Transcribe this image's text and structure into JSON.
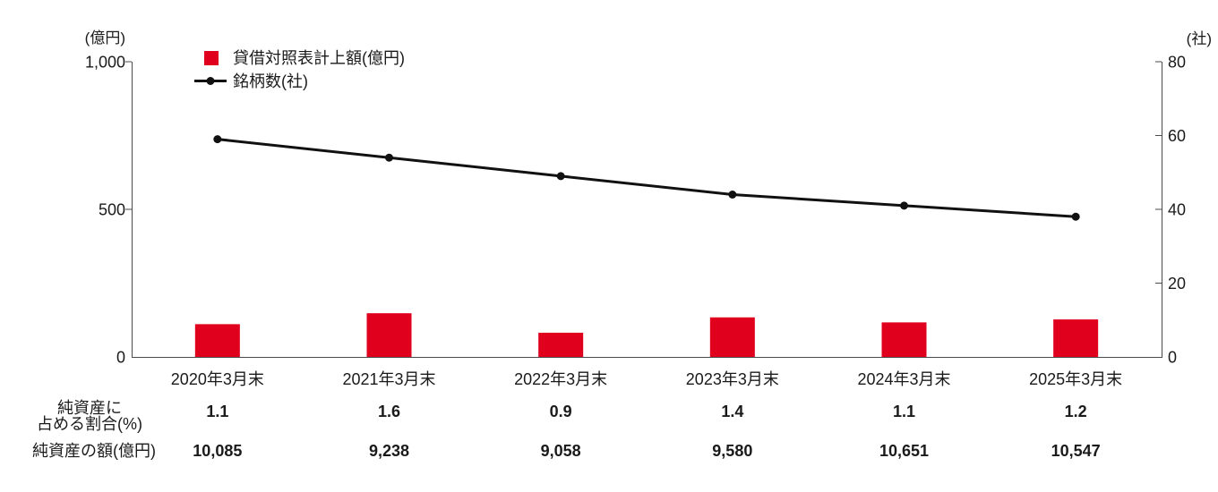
{
  "chart_data": {
    "type": "bar+line-combo",
    "title": "",
    "categories": [
      "2020年3月末",
      "2021年3月末",
      "2022年3月末",
      "2023年3月末",
      "2024年3月末",
      "2025年3月末"
    ],
    "series": [
      {
        "name": "貸借対照表計上額(億円)",
        "type": "bar",
        "axis": "left",
        "color": "#e0001e",
        "values": [
          111,
          148,
          82,
          134,
          117,
          127
        ]
      },
      {
        "name": "銘柄数(社)",
        "type": "line",
        "axis": "right",
        "color": "#111111",
        "values": [
          59,
          54,
          49,
          44,
          41,
          38
        ]
      }
    ],
    "left_axis": {
      "unit": "(億円)",
      "min": 0,
      "max": 1000,
      "ticks": [
        {
          "label": "1,000",
          "value": 1000
        },
        {
          "label": "500",
          "value": 500
        },
        {
          "label": "0",
          "value": 0
        }
      ]
    },
    "right_axis": {
      "unit": "(社)",
      "min": 0,
      "max": 80,
      "ticks": [
        {
          "label": "80",
          "value": 80
        },
        {
          "label": "60",
          "value": 60
        },
        {
          "label": "40",
          "value": 40
        },
        {
          "label": "20",
          "value": 20
        },
        {
          "label": "0",
          "value": 0
        }
      ]
    },
    "grid": false,
    "legend_position": "top-left",
    "table_rows": [
      {
        "label_lines": [
          "純資産に",
          "占める割合(%)"
        ],
        "values": [
          "1.1",
          "1.6",
          "0.9",
          "1.4",
          "1.1",
          "1.2"
        ]
      },
      {
        "label_lines": [
          "純資産の額(億円)"
        ],
        "values": [
          "10,085",
          "9,238",
          "9,058",
          "9,580",
          "10,651",
          "10,547"
        ]
      }
    ],
    "colors": {
      "bar": "#e0001e",
      "line": "#111111",
      "axis": "#4a4a4a",
      "text": "#1a1a1a"
    }
  }
}
